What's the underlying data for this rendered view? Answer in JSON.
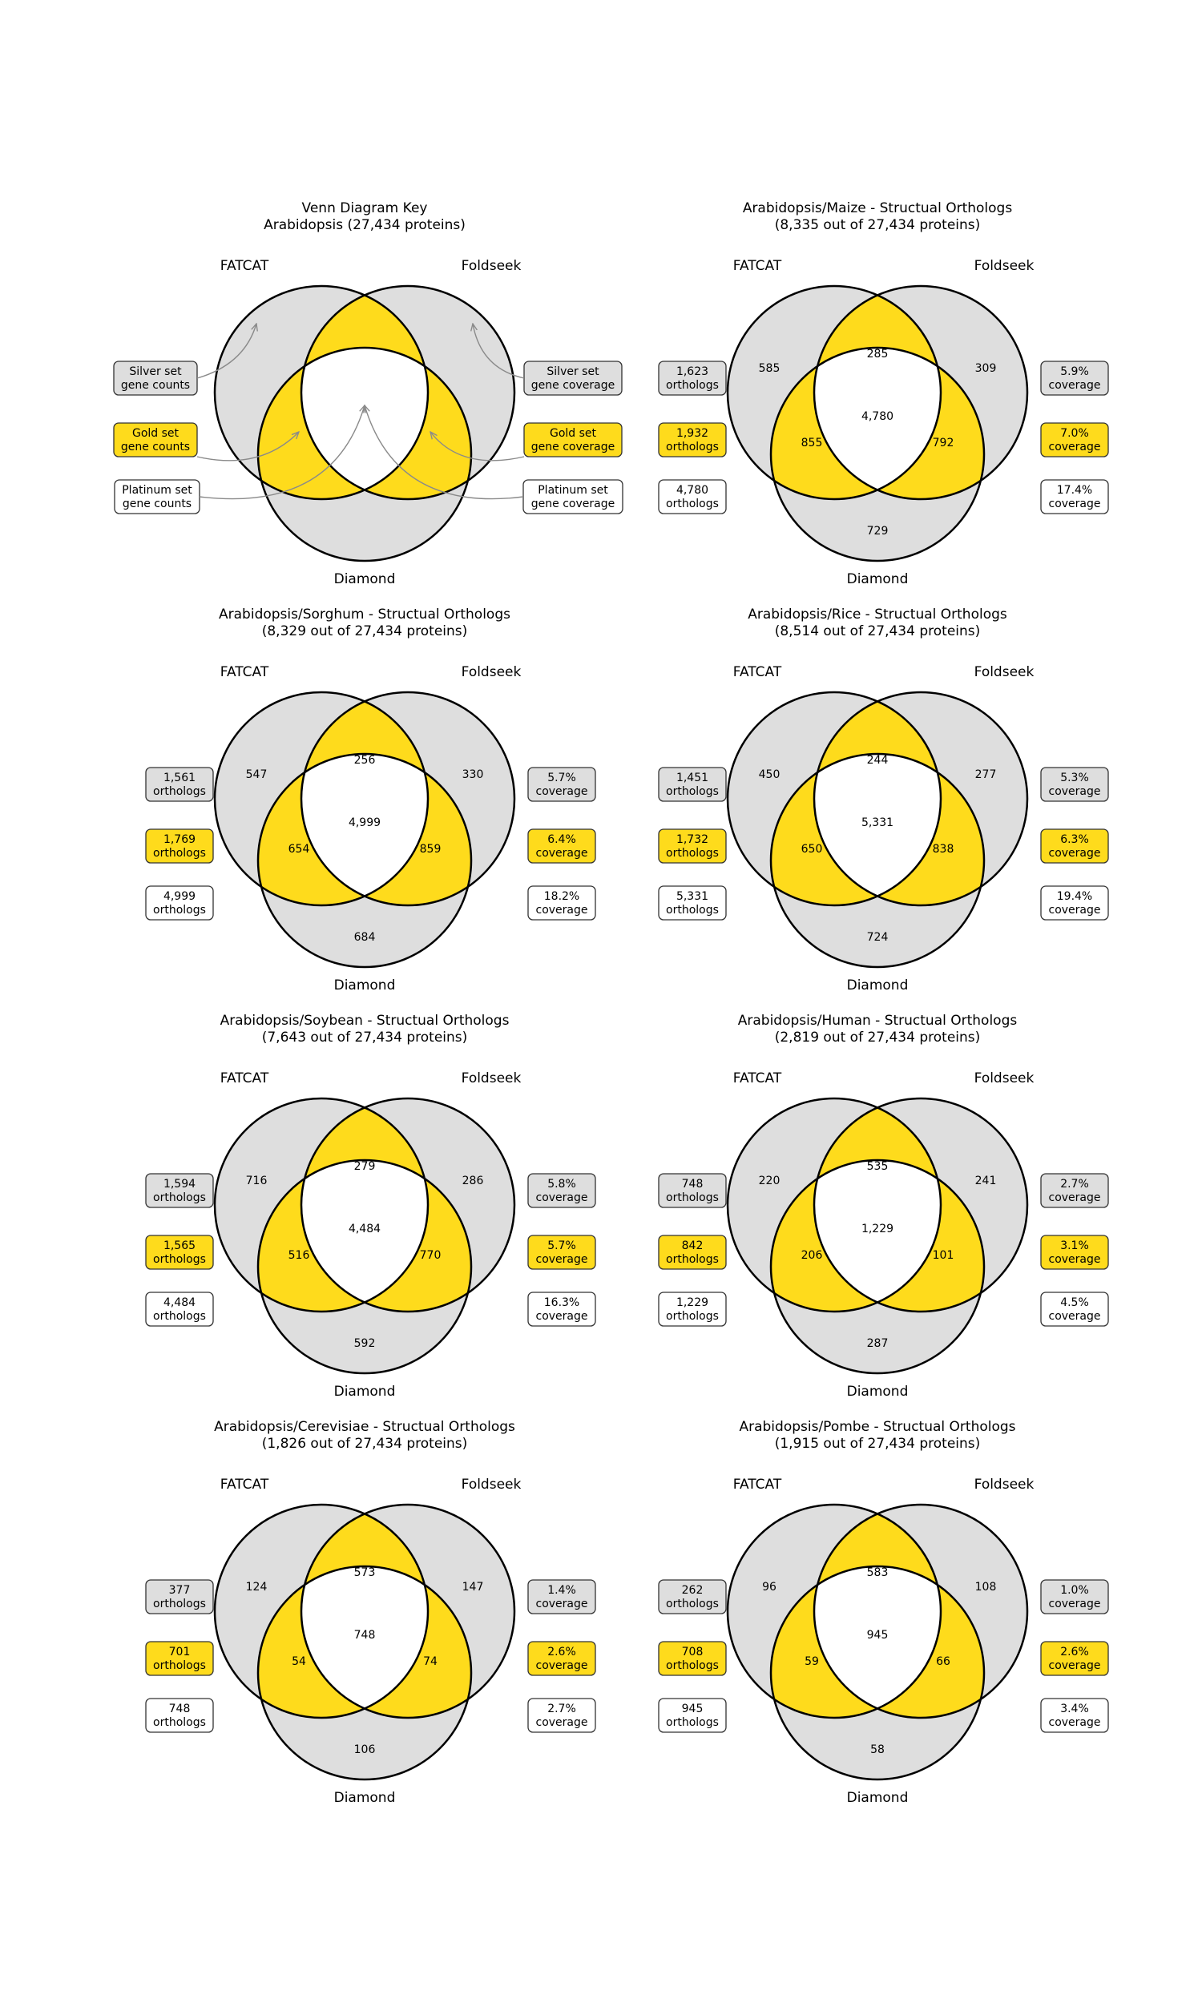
{
  "colors": {
    "silver": "#dedede",
    "gold": "#fedb1c",
    "platinum": "#ffffff",
    "stroke": "#000000",
    "arrow": "#8a8a8a"
  },
  "set_labels": {
    "left": "FATCAT",
    "right": "Foldseek",
    "bottom": "Diamond"
  },
  "key": {
    "title": [
      "Venn Diagram Key",
      "Arabidopsis (27,434 proteins)"
    ],
    "left_boxes": [
      [
        "Silver set",
        "gene counts"
      ],
      [
        "Gold set",
        "gene counts"
      ],
      [
        "Platinum set",
        "gene counts"
      ]
    ],
    "right_boxes": [
      [
        "Silver set",
        "gene coverage"
      ],
      [
        "Gold set",
        "gene coverage"
      ],
      [
        "Platinum set",
        "gene coverage"
      ]
    ]
  },
  "panels": [
    {
      "title": [
        "Arabidopsis/Maize - Structual Orthologs",
        "(8,335 out of 27,434 proteins)"
      ],
      "regions": {
        "f": "585",
        "s": "309",
        "d": "729",
        "fs": "285",
        "fd": "855",
        "sd": "792",
        "fsd": "4,780"
      },
      "left_boxes": [
        [
          "1,623",
          "orthologs"
        ],
        [
          "1,932",
          "orthologs"
        ],
        [
          "4,780",
          "orthologs"
        ]
      ],
      "right_boxes": [
        [
          "5.9%",
          "coverage"
        ],
        [
          "7.0%",
          "coverage"
        ],
        [
          "17.4%",
          "coverage"
        ]
      ]
    },
    {
      "title": [
        "Arabidopsis/Sorghum - Structual Orthologs",
        "(8,329 out of 27,434 proteins)"
      ],
      "regions": {
        "f": "547",
        "s": "330",
        "d": "684",
        "fs": "256",
        "fd": "654",
        "sd": "859",
        "fsd": "4,999"
      },
      "left_boxes": [
        [
          "1,561",
          "orthologs"
        ],
        [
          "1,769",
          "orthologs"
        ],
        [
          "4,999",
          "orthologs"
        ]
      ],
      "right_boxes": [
        [
          "5.7%",
          "coverage"
        ],
        [
          "6.4%",
          "coverage"
        ],
        [
          "18.2%",
          "coverage"
        ]
      ]
    },
    {
      "title": [
        "Arabidopsis/Rice - Structual Orthologs",
        "(8,514 out of 27,434 proteins)"
      ],
      "regions": {
        "f": "450",
        "s": "277",
        "d": "724",
        "fs": "244",
        "fd": "650",
        "sd": "838",
        "fsd": "5,331"
      },
      "left_boxes": [
        [
          "1,451",
          "orthologs"
        ],
        [
          "1,732",
          "orthologs"
        ],
        [
          "5,331",
          "orthologs"
        ]
      ],
      "right_boxes": [
        [
          "5.3%",
          "coverage"
        ],
        [
          "6.3%",
          "coverage"
        ],
        [
          "19.4%",
          "coverage"
        ]
      ]
    },
    {
      "title": [
        "Arabidopsis/Soybean - Structual Orthologs",
        "(7,643 out of 27,434 proteins)"
      ],
      "regions": {
        "f": "716",
        "s": "286",
        "d": "592",
        "fs": "279",
        "fd": "516",
        "sd": "770",
        "fsd": "4,484"
      },
      "left_boxes": [
        [
          "1,594",
          "orthologs"
        ],
        [
          "1,565",
          "orthologs"
        ],
        [
          "4,484",
          "orthologs"
        ]
      ],
      "right_boxes": [
        [
          "5.8%",
          "coverage"
        ],
        [
          "5.7%",
          "coverage"
        ],
        [
          "16.3%",
          "coverage"
        ]
      ]
    },
    {
      "title": [
        "Arabidopsis/Human - Structual Orthologs",
        "(2,819 out of 27,434 proteins)"
      ],
      "regions": {
        "f": "220",
        "s": "241",
        "d": "287",
        "fs": "535",
        "fd": "206",
        "sd": "101",
        "fsd": "1,229"
      },
      "left_boxes": [
        [
          "748",
          "orthologs"
        ],
        [
          "842",
          "orthologs"
        ],
        [
          "1,229",
          "orthologs"
        ]
      ],
      "right_boxes": [
        [
          "2.7%",
          "coverage"
        ],
        [
          "3.1%",
          "coverage"
        ],
        [
          "4.5%",
          "coverage"
        ]
      ]
    },
    {
      "title": [
        "Arabidopsis/Cerevisiae - Structual Orthologs",
        "(1,826 out of 27,434 proteins)"
      ],
      "regions": {
        "f": "124",
        "s": "147",
        "d": "106",
        "fs": "573",
        "fd": "54",
        "sd": "74",
        "fsd": "748"
      },
      "left_boxes": [
        [
          "377",
          "orthologs"
        ],
        [
          "701",
          "orthologs"
        ],
        [
          "748",
          "orthologs"
        ]
      ],
      "right_boxes": [
        [
          "1.4%",
          "coverage"
        ],
        [
          "2.6%",
          "coverage"
        ],
        [
          "2.7%",
          "coverage"
        ]
      ]
    },
    {
      "title": [
        "Arabidopsis/Pombe - Structual Orthologs",
        "(1,915 out of 27,434 proteins)"
      ],
      "regions": {
        "f": "96",
        "s": "108",
        "d": "58",
        "fs": "583",
        "fd": "59",
        "sd": "66",
        "fsd": "945"
      },
      "left_boxes": [
        [
          "262",
          "orthologs"
        ],
        [
          "708",
          "orthologs"
        ],
        [
          "945",
          "orthologs"
        ]
      ],
      "right_boxes": [
        [
          "1.0%",
          "coverage"
        ],
        [
          "2.6%",
          "coverage"
        ],
        [
          "3.4%",
          "coverage"
        ]
      ]
    }
  ]
}
